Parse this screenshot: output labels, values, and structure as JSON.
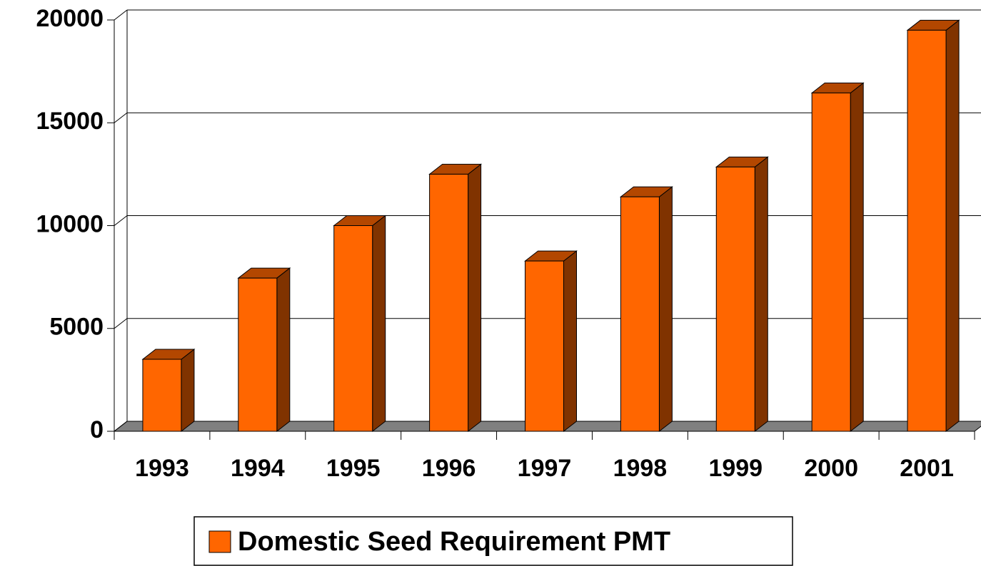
{
  "chart_data": {
    "type": "bar3d",
    "categories": [
      "1993",
      "1994",
      "1995",
      "1996",
      "1997",
      "1998",
      "1999",
      "2000",
      "2001"
    ],
    "series": [
      {
        "name": "Domestic Seed Requirement PMT",
        "color": "#ff6600",
        "values": [
          3500,
          7450,
          10000,
          12500,
          8280,
          11400,
          12850,
          16450,
          19500
        ]
      }
    ],
    "ylim": [
      0,
      20000
    ],
    "yticks": [
      0,
      5000,
      10000,
      15000,
      20000
    ],
    "grid": true,
    "legend": "bottom"
  }
}
